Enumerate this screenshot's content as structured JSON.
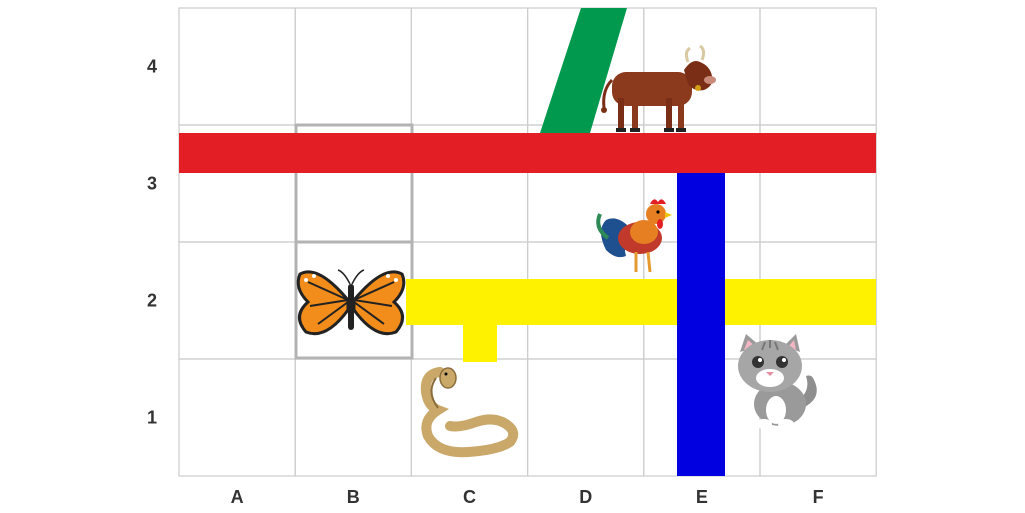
{
  "grid": {
    "columns": [
      "A",
      "B",
      "C",
      "D",
      "E",
      "F"
    ],
    "rows": [
      "4",
      "3",
      "2",
      "1"
    ]
  },
  "colors": {
    "grid_line": "#cccccc",
    "highlight": "#b3b3b3",
    "red_path": "#e31e24",
    "yellow_path": "#fff200",
    "blue_path": "#0000e0",
    "green_path": "#00994d"
  },
  "icons": [
    "cow-icon",
    "rooster-icon",
    "butterfly-icon",
    "snake-icon",
    "cat-icon"
  ]
}
